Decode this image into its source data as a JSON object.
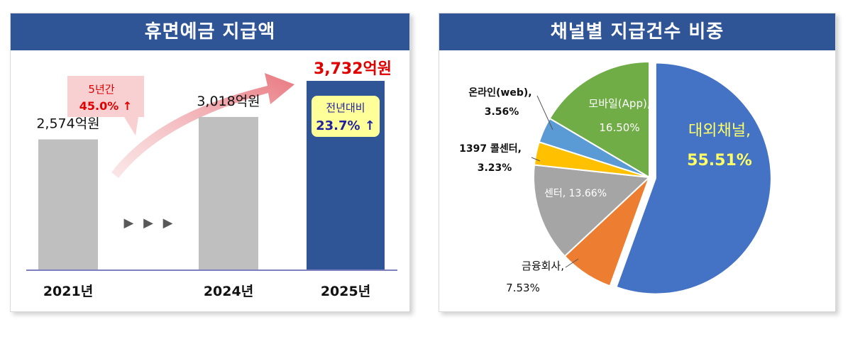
{
  "left_panel": {
    "title": "휴면예금 지급액"
  },
  "right_panel": {
    "title": "채널별 지급건수 비중"
  },
  "chart_data": [
    {
      "type": "bar",
      "title": "휴면예금 지급액",
      "categories": [
        "2021년",
        "2024년",
        "2025년"
      ],
      "values": [
        2574,
        3018,
        3732
      ],
      "value_labels": [
        "2,574억원",
        "3,018억원",
        "3,732억원"
      ],
      "unit": "억원",
      "colors": [
        "#bfbfbf",
        "#bfbfbf",
        "#2f5597"
      ],
      "highlight_label_color": "#e00000",
      "gap_arrows": "▶ ▶ ▶",
      "annotations": {
        "growth_5yr_label": "5년간",
        "growth_5yr_value": "45.0% ↑",
        "yoy_label": "전년대비",
        "yoy_value": "23.7% ↑"
      }
    },
    {
      "type": "pie",
      "title": "채널별 지급건수 비중",
      "slices": [
        {
          "label": "대외채널,",
          "value": 55.51,
          "value_label": "55.51%",
          "color": "#4472c4"
        },
        {
          "label": "금융회사,",
          "value": 7.53,
          "value_label": "7.53%",
          "color": "#ed7d31"
        },
        {
          "label": "센터,",
          "value": 13.66,
          "value_label": "13.66%",
          "color": "#a5a5a5"
        },
        {
          "label": "1397 콜센터,",
          "value": 3.23,
          "value_label": "3.23%",
          "color": "#ffc000"
        },
        {
          "label": "온라인(web),",
          "value": 3.56,
          "value_label": "3.56%",
          "color": "#5b9bd5"
        },
        {
          "label": "모바일(App),",
          "value": 16.5,
          "value_label": "16.50%",
          "color": "#70ad47"
        }
      ]
    }
  ]
}
